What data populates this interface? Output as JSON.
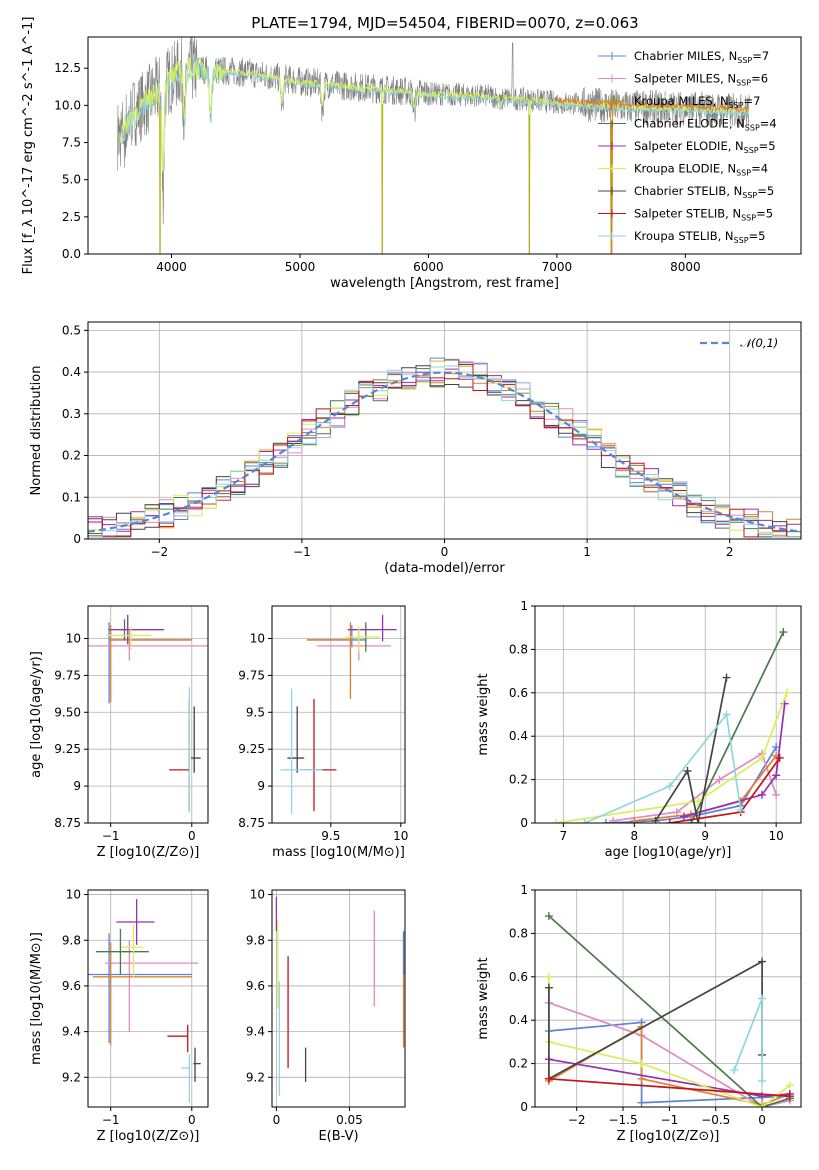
{
  "figure_title": "PLATE=1794, MJD=54504, FIBERID=0070, z=0.063",
  "legend": [
    {
      "label": "Chabrier MILES, N",
      "sub": "SSP",
      "suffix": "=7",
      "color": "#5b84d6"
    },
    {
      "label": "Salpeter MILES, N",
      "sub": "SSP",
      "suffix": "=6",
      "color": "#e28ac4"
    },
    {
      "label": "Kroupa MILES, N",
      "sub": "SSP",
      "suffix": "=7",
      "color": "#b39b00"
    },
    {
      "label": "Chabrier ELODIE, N",
      "sub": "SSP",
      "suffix": "=4",
      "color": "#4a7a4a"
    },
    {
      "label": "Salpeter ELODIE, N",
      "sub": "SSP",
      "suffix": "=5",
      "color": "#9a2fb0"
    },
    {
      "label": "Kroupa ELODIE, N",
      "sub": "SSP",
      "suffix": "=4",
      "color": "#d8ef5a"
    },
    {
      "label": "Chabrier STELIB, N",
      "sub": "SSP",
      "suffix": "=5",
      "color": "#444444"
    },
    {
      "label": "Salpeter STELIB, N",
      "sub": "SSP",
      "suffix": "=5",
      "color": "#c4141c"
    },
    {
      "label": "Kroupa STELIB, N",
      "sub": "SSP",
      "suffix": "=5",
      "color": "#8fd6e0"
    }
  ],
  "chart_data": [
    {
      "id": "spectrum",
      "type": "line",
      "title": "PLATE=1794, MJD=54504, FIBERID=0070, z=0.063",
      "xlabel": "wavelength [Angstrom, rest frame]",
      "ylabel": "Flux [f_λ 10^-17 erg cm^-2 s^-1 A^-1]",
      "xlim": [
        3350,
        8900
      ],
      "ylim": [
        0,
        14.6
      ],
      "xticks": [
        4000,
        5000,
        6000,
        7000,
        8000
      ],
      "yticks": [
        0.0,
        2.5,
        5.0,
        7.5,
        10.0,
        12.5
      ],
      "data_color": "#808080",
      "model_colors": [
        "#8fd6e0",
        "#d8ef5a",
        "#e08030"
      ],
      "continuum": [
        [
          3600,
          8.0
        ],
        [
          3700,
          9.5
        ],
        [
          3800,
          10.2
        ],
        [
          3950,
          11.5
        ],
        [
          4100,
          12.5
        ],
        [
          4300,
          12.4
        ],
        [
          4600,
          12.2
        ],
        [
          5000,
          11.6
        ],
        [
          5500,
          11.2
        ],
        [
          6000,
          10.8
        ],
        [
          6500,
          10.6
        ],
        [
          7000,
          10.2
        ],
        [
          7500,
          9.9
        ],
        [
          8000,
          9.8
        ],
        [
          8500,
          9.6
        ]
      ],
      "absorption_features": [
        [
          3934,
          4.2
        ],
        [
          4102,
          8.5
        ],
        [
          4305,
          8.8
        ],
        [
          4861,
          9.8
        ],
        [
          5175,
          9.6
        ],
        [
          5890,
          9.6
        ],
        [
          6563,
          10.0
        ]
      ],
      "model_gaps": [
        [
          3910,
          0
        ],
        [
          5640,
          0
        ],
        [
          6785,
          0
        ],
        [
          7425,
          0
        ]
      ],
      "grid": false
    },
    {
      "id": "residual-histogram",
      "type": "histogram",
      "xlabel": "(data-model)/error",
      "ylabel": "Normed distribution",
      "xlim": [
        -2.5,
        2.5
      ],
      "ylim": [
        0,
        0.52
      ],
      "xticks": [
        -2,
        -1,
        0,
        1,
        2
      ],
      "yticks": [
        0.0,
        0.1,
        0.2,
        0.3,
        0.4,
        0.5
      ],
      "bin_width": 0.1,
      "reference_label": "𝒩(0,1)",
      "reference_color": "#5b84d6",
      "series_colors": [
        "#5b84d6",
        "#e28ac4",
        "#e08030",
        "#4a7a4a",
        "#9a2fb0",
        "#d8ef5a",
        "#444444",
        "#c4141c",
        "#8fd6e0"
      ],
      "grid": true,
      "legend_position": "upper right"
    },
    {
      "id": "age-vs-metallicity",
      "type": "errorbar",
      "xlabel": "Z [log10(Z/Z⊙)]",
      "ylabel": "age [log10(age/yr)]",
      "xlim": [
        -1.28,
        0.2
      ],
      "ylim": [
        8.75,
        10.22
      ],
      "xticks": [
        -1,
        0
      ],
      "yticks": [
        8.75,
        9.0,
        9.25,
        9.5,
        9.75,
        10.0
      ],
      "grid": true,
      "points": [
        {
          "x": -1.02,
          "y": 9.99,
          "xerr": [
            0.0,
            1.02
          ],
          "yerr": [
            0.43,
            0.12
          ],
          "color": "#5b84d6"
        },
        {
          "x": -0.77,
          "y": 9.95,
          "xerr": [
            0.55,
            1.0
          ],
          "yerr": [
            0.1,
            0.1
          ],
          "color": "#e28ac4"
        },
        {
          "x": -1.0,
          "y": 9.99,
          "xerr": [
            0.0,
            1.0
          ],
          "yerr": [
            0.42,
            0.1
          ],
          "color": "#e08030"
        },
        {
          "x": -0.83,
          "y": 10.06,
          "xerr": [
            0.2,
            0.46
          ],
          "yerr": [
            0.07,
            0.07
          ],
          "color": "#4a7a4a"
        },
        {
          "x": -0.79,
          "y": 10.06,
          "xerr": [
            0.2,
            0.45
          ],
          "yerr": [
            0.1,
            0.1
          ],
          "color": "#9a2fb0"
        },
        {
          "x": -0.75,
          "y": 10.02,
          "xerr": [
            0.3,
            0.25
          ],
          "yerr": [
            0.1,
            0.06
          ],
          "color": "#d8ef5a"
        },
        {
          "x": 0.03,
          "y": 9.19,
          "xerr": [
            0.04,
            0.08
          ],
          "yerr": [
            0.1,
            0.35
          ],
          "color": "#444444"
        },
        {
          "x": -0.03,
          "y": 9.11,
          "xerr": [
            0.25,
            0.0
          ],
          "yerr": [
            0.28,
            0.48
          ],
          "color": "#c4141c"
        },
        {
          "x": -0.03,
          "y": 9.2,
          "xerr": [
            0.0,
            0.0
          ],
          "yerr": [
            0.38,
            0.47
          ],
          "color": "#8fd6e0"
        }
      ]
    },
    {
      "id": "age-vs-mass",
      "type": "errorbar",
      "xlabel": "mass [log10(M/M⊙)]",
      "ylabel": "",
      "xlim": [
        9.08,
        10.03
      ],
      "ylim": [
        8.75,
        10.22
      ],
      "xticks": [
        9.5,
        10.0
      ],
      "yticks": [
        8.75,
        9.0,
        9.25,
        9.5,
        9.75,
        10.0
      ],
      "grid": true,
      "points": [
        {
          "x": 9.65,
          "y": 9.99,
          "xerr": [
            0.32,
            0.1
          ],
          "yerr": [
            0.05,
            0.1
          ],
          "color": "#5b84d6"
        },
        {
          "x": 9.7,
          "y": 9.95,
          "xerr": [
            0.3,
            0.23
          ],
          "yerr": [
            0.1,
            0.1
          ],
          "color": "#e28ac4"
        },
        {
          "x": 9.64,
          "y": 9.99,
          "xerr": [
            0.3,
            0.02
          ],
          "yerr": [
            0.4,
            0.12
          ],
          "color": "#e08030"
        },
        {
          "x": 9.75,
          "y": 10.06,
          "xerr": [
            0.1,
            0.08
          ],
          "yerr": [
            0.15,
            0.05
          ],
          "color": "#4a7a4a"
        },
        {
          "x": 9.87,
          "y": 10.06,
          "xerr": [
            0.25,
            0.1
          ],
          "yerr": [
            0.08,
            0.1
          ],
          "color": "#9a2fb0"
        },
        {
          "x": 9.7,
          "y": 10.01,
          "xerr": [
            0.1,
            0.15
          ],
          "yerr": [
            0.1,
            0.07
          ],
          "color": "#d8ef5a"
        },
        {
          "x": 9.26,
          "y": 9.19,
          "xerr": [
            0.07,
            0.05
          ],
          "yerr": [
            0.1,
            0.35
          ],
          "color": "#444444"
        },
        {
          "x": 9.38,
          "y": 9.11,
          "xerr": [
            0.07,
            0.16
          ],
          "yerr": [
            0.28,
            0.48
          ],
          "color": "#c4141c"
        },
        {
          "x": 9.22,
          "y": 9.11,
          "xerr": [
            0.08,
            0.22
          ],
          "yerr": [
            0.3,
            0.55
          ],
          "color": "#8fd6e0"
        }
      ]
    },
    {
      "id": "mass-weight-vs-age",
      "type": "line",
      "xlabel": "age [log10(age/yr)]",
      "ylabel": "mass weight",
      "xlim": [
        6.6,
        10.35
      ],
      "ylim": [
        0,
        1.0
      ],
      "xticks": [
        7,
        8,
        9,
        10
      ],
      "yticks": [
        0.0,
        0.2,
        0.4,
        0.6,
        0.8,
        1.0
      ],
      "grid": true,
      "series": [
        {
          "color": "#5b84d6",
          "x": [
            7.6,
            8.3,
            8.8,
            9.5,
            10.0
          ],
          "y": [
            0.0,
            0.01,
            0.03,
            0.08,
            0.35
          ]
        },
        {
          "color": "#e28ac4",
          "x": [
            7.7,
            8.6,
            9.2,
            9.8,
            10.0
          ],
          "y": [
            0.01,
            0.05,
            0.2,
            0.32,
            0.13
          ]
        },
        {
          "color": "#e08030",
          "x": [
            8.0,
            8.8,
            9.5,
            10.0
          ],
          "y": [
            0.01,
            0.04,
            0.1,
            0.31
          ]
        },
        {
          "color": "#4a7a4a",
          "x": [
            8.8,
            10.1
          ],
          "y": [
            0.0,
            0.88
          ]
        },
        {
          "color": "#9a2fb0",
          "x": [
            8.7,
            9.8,
            10.0,
            10.12
          ],
          "y": [
            0.03,
            0.13,
            0.22,
            0.55
          ]
        },
        {
          "color": "#d8ef5a",
          "x": [
            6.9,
            8.9,
            9.8,
            10.15
          ],
          "y": [
            0.0,
            0.1,
            0.3,
            0.6
          ]
        },
        {
          "color": "#444444",
          "x": [
            8.3,
            8.75,
            8.9,
            9.3
          ],
          "y": [
            0.01,
            0.24,
            0.0,
            0.67
          ]
        },
        {
          "color": "#c4141c",
          "x": [
            8.5,
            9.5,
            10.05
          ],
          "y": [
            0.0,
            0.05,
            0.3
          ]
        },
        {
          "color": "#8fd6e0",
          "x": [
            7.3,
            8.5,
            9.3,
            9.5
          ],
          "y": [
            0.0,
            0.17,
            0.5,
            0.06
          ]
        }
      ]
    },
    {
      "id": "mass-vs-metallicity",
      "type": "errorbar",
      "xlabel": "Z [log10(Z/Z⊙)]",
      "ylabel": "mass [log10(M/M⊙)]",
      "xlim": [
        -1.28,
        0.2
      ],
      "ylim": [
        9.07,
        10.02
      ],
      "xticks": [
        -1,
        0
      ],
      "yticks": [
        9.2,
        9.4,
        9.6,
        9.8,
        10.0
      ],
      "grid": true,
      "points": [
        {
          "x": -1.02,
          "y": 9.65,
          "xerr": [
            0.28,
            1.02
          ],
          "yerr": [
            0.3,
            0.18
          ],
          "color": "#5b84d6"
        },
        {
          "x": -0.77,
          "y": 9.7,
          "xerr": [
            0.3,
            0.85
          ],
          "yerr": [
            0.3,
            0.1
          ],
          "color": "#e28ac4"
        },
        {
          "x": -1.0,
          "y": 9.64,
          "xerr": [
            0.22,
            1.0
          ],
          "yerr": [
            0.3,
            0.15
          ],
          "color": "#e08030"
        },
        {
          "x": -0.88,
          "y": 9.75,
          "xerr": [
            0.3,
            0.35
          ],
          "yerr": [
            0.1,
            0.1
          ],
          "color": "#4a7a4a"
        },
        {
          "x": -0.68,
          "y": 9.88,
          "xerr": [
            0.25,
            0.22
          ],
          "yerr": [
            0.1,
            0.1
          ],
          "color": "#9a2fb0"
        },
        {
          "x": -0.72,
          "y": 9.77,
          "xerr": [
            0.15,
            0.12
          ],
          "yerr": [
            0.13,
            0.1
          ],
          "color": "#d8ef5a"
        },
        {
          "x": 0.04,
          "y": 9.26,
          "xerr": [
            0.02,
            0.07
          ],
          "yerr": [
            0.08,
            0.07
          ],
          "color": "#444444"
        },
        {
          "x": -0.05,
          "y": 9.38,
          "xerr": [
            0.25,
            0.0
          ],
          "yerr": [
            0.07,
            0.05
          ],
          "color": "#c4141c"
        },
        {
          "x": -0.03,
          "y": 9.24,
          "xerr": [
            0.1,
            0.0
          ],
          "yerr": [
            0.15,
            0.06
          ],
          "color": "#8fd6e0"
        }
      ]
    },
    {
      "id": "mass-vs-extinction",
      "type": "errorbar",
      "xlabel": "E(B-V)",
      "ylabel": "",
      "xlim": [
        -0.003,
        0.088
      ],
      "ylim": [
        9.07,
        10.02
      ],
      "xticks": [
        0.0,
        0.05
      ],
      "yticks": [
        9.2,
        9.4,
        9.6,
        9.8,
        10.0
      ],
      "grid": true,
      "segments": [
        {
          "x": 0.0,
          "y0": 9.84,
          "y1": 9.99,
          "color": "#9a2fb0"
        },
        {
          "x": 0.001,
          "y0": 9.5,
          "y1": 9.89,
          "color": "#d8ef5a"
        },
        {
          "x": 0.002,
          "y0": 9.12,
          "y1": 9.62,
          "color": "#8fd6e0"
        },
        {
          "x": 0.008,
          "y0": 9.24,
          "y1": 9.73,
          "color": "#c4141c"
        },
        {
          "x": 0.02,
          "y0": 9.18,
          "y1": 9.33,
          "color": "#444444"
        },
        {
          "x": 0.067,
          "y0": 9.51,
          "y1": 9.93,
          "color": "#e28ac4"
        },
        {
          "x": 0.087,
          "y0": 9.33,
          "y1": 9.83,
          "color": "#e08030"
        },
        {
          "x": 0.087,
          "y0": 9.65,
          "y1": 9.84,
          "color": "#5b84d6"
        }
      ]
    },
    {
      "id": "mass-weight-vs-metallicity",
      "type": "line",
      "xlabel": "Z [log10(Z/Z⊙)]",
      "ylabel": "mass weight",
      "xlim": [
        -2.45,
        0.42
      ],
      "ylim": [
        0,
        1.0
      ],
      "xticks": [
        -2.0,
        -1.5,
        -1.0,
        -0.5,
        0.0
      ],
      "yticks": [
        0.0,
        0.2,
        0.4,
        0.6,
        0.8,
        1.0
      ],
      "grid": true,
      "series": [
        {
          "color": "#5b84d6",
          "x": [
            -2.3,
            -1.3,
            -1.3,
            0.3
          ],
          "y": [
            0.35,
            0.39,
            0.02,
            0.05
          ]
        },
        {
          "color": "#e28ac4",
          "x": [
            -2.3,
            -1.3,
            0.0,
            0.3
          ],
          "y": [
            0.48,
            0.33,
            0.0,
            0.03
          ]
        },
        {
          "color": "#e08030",
          "x": [
            -2.3,
            -1.3,
            -1.3,
            0.0,
            0.3
          ],
          "y": [
            0.12,
            0.37,
            0.13,
            0.01,
            0.06
          ]
        },
        {
          "color": "#4a7a4a",
          "x": [
            -2.3,
            0.0,
            0.3
          ],
          "y": [
            0.88,
            0.0,
            0.04
          ]
        },
        {
          "color": "#9a2fb0",
          "x": [
            -2.3,
            0.0,
            0.3
          ],
          "y": [
            0.22,
            0.05,
            0.06
          ]
        },
        {
          "color": "#d8ef5a",
          "x": [
            -2.3,
            -2.3,
            -1.3,
            0.0,
            0.3
          ],
          "y": [
            0.6,
            0.3,
            0.2,
            0.0,
            0.1
          ]
        },
        {
          "color": "#444444",
          "x": [
            -2.3,
            -2.3,
            0.0,
            0.0
          ],
          "y": [
            0.55,
            0.13,
            0.67,
            0.24
          ]
        },
        {
          "color": "#c4141c",
          "x": [
            -2.3,
            0.3
          ],
          "y": [
            0.13,
            0.05
          ]
        },
        {
          "color": "#8fd6e0",
          "x": [
            -0.3,
            0.0,
            0.0
          ],
          "y": [
            0.17,
            0.5,
            0.12
          ]
        }
      ]
    }
  ]
}
